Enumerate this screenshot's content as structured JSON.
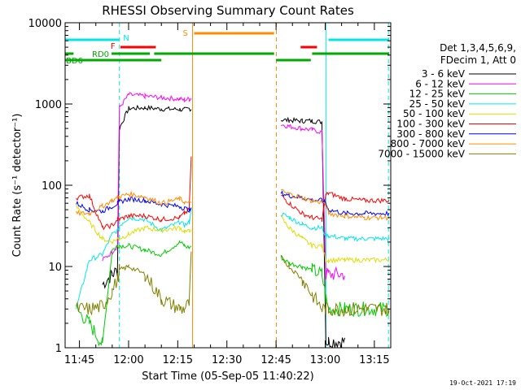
{
  "chart_data": {
    "type": "line",
    "title": "RHESSI Observing Summary Count Rates",
    "xlabel": "Start Time (05-Sep-05 11:40:22)",
    "ylabel": "Count Rate (s⁻¹ detector⁻¹)",
    "yscale": "log",
    "ylim": [
      1,
      10000
    ],
    "xlim_minutes": [
      0.63,
      100
    ],
    "x_ticks": [
      {
        "label": "11:45",
        "minutes": 5
      },
      {
        "label": "12:00",
        "minutes": 20
      },
      {
        "label": "12:15",
        "minutes": 35
      },
      {
        "label": "12:30",
        "minutes": 50
      },
      {
        "label": "12:45",
        "minutes": 65
      },
      {
        "label": "13:00",
        "minutes": 80
      },
      {
        "label": "13:15",
        "minutes": 95
      }
    ],
    "y_ticks": [
      {
        "label": "1",
        "value": 1
      },
      {
        "label": "10",
        "value": 10
      },
      {
        "label": "100",
        "value": 100
      },
      {
        "label": "1000",
        "value": 1000
      },
      {
        "label": "10000",
        "value": 10000
      }
    ],
    "legend_header": [
      "Det 1,3,4,5,6,9,",
      "FDecim 1, Att 0"
    ],
    "timestamp": "19-Oct-2021 17:19",
    "x": [
      0.6,
      4,
      8,
      12,
      15,
      16.6,
      17.2,
      20,
      25,
      30,
      35.6,
      37,
      38.5,
      39.1,
      39.5,
      42.8,
      51,
      59,
      64.4,
      66.5,
      69,
      73,
      76,
      79,
      80.2,
      81,
      86,
      92,
      99.5
    ],
    "series": [
      {
        "name": "3 - 6 keV",
        "color": "#000000",
        "values": [
          null,
          null,
          null,
          6,
          8,
          9,
          500,
          880,
          900,
          870,
          860,
          850,
          870,
          880,
          null,
          null,
          null,
          null,
          null,
          640,
          630,
          620,
          620,
          600,
          1.2,
          1.2,
          1.2,
          null,
          null
        ]
      },
      {
        "name": "6 - 12 keV",
        "color": "#ff00ff",
        "values": [
          null,
          null,
          null,
          12,
          15,
          18,
          900,
          1300,
          1250,
          1200,
          1150,
          1120,
          1150,
          1180,
          null,
          null,
          null,
          null,
          null,
          560,
          530,
          500,
          480,
          450,
          8,
          8,
          8,
          null,
          null
        ]
      },
      {
        "name": "12 - 25 keV",
        "color": "#00cc00",
        "values": [
          null,
          3,
          2,
          1.1,
          16,
          18,
          18,
          18,
          16,
          14,
          20,
          18,
          17,
          18,
          null,
          null,
          null,
          null,
          null,
          13,
          11,
          10,
          9,
          8,
          4,
          3,
          3,
          3,
          3
        ]
      },
      {
        "name": "25 - 50 keV",
        "color": "#00e6e6",
        "values": [
          null,
          3,
          12,
          14,
          25,
          28,
          32,
          40,
          38,
          28,
          35,
          32,
          35,
          50,
          null,
          null,
          null,
          null,
          null,
          45,
          40,
          33,
          30,
          30,
          24,
          24,
          22,
          22,
          22
        ]
      },
      {
        "name": "50 - 100 keV",
        "color": "#dddd00",
        "values": [
          null,
          55,
          35,
          22,
          20,
          22,
          22,
          25,
          30,
          28,
          30,
          27,
          27,
          30,
          null,
          null,
          null,
          null,
          null,
          40,
          30,
          22,
          18,
          18,
          12,
          12,
          12,
          12,
          12
        ]
      },
      {
        "name": "100 - 300 keV",
        "color": "#ff0000",
        "values": [
          null,
          70,
          75,
          30,
          32,
          38,
          38,
          42,
          42,
          38,
          40,
          45,
          50,
          220,
          null,
          null,
          null,
          null,
          null,
          75,
          60,
          45,
          40,
          38,
          75,
          80,
          68,
          65,
          65
        ]
      },
      {
        "name": "300 - 800 keV",
        "color": "#0000ff",
        "values": [
          null,
          60,
          50,
          48,
          55,
          60,
          62,
          68,
          65,
          58,
          55,
          52,
          50,
          50,
          null,
          null,
          null,
          null,
          null,
          80,
          75,
          70,
          66,
          65,
          60,
          50,
          45,
          45,
          45
        ]
      },
      {
        "name": "800 - 7000 keV",
        "color": "#ff8c00",
        "values": [
          null,
          45,
          45,
          55,
          65,
          70,
          72,
          78,
          72,
          60,
          68,
          62,
          60,
          65,
          null,
          null,
          null,
          null,
          null,
          85,
          78,
          70,
          64,
          62,
          55,
          45,
          42,
          40,
          40
        ]
      },
      {
        "name": "7000 - 15000 keV",
        "color": "#808000",
        "values": [
          null,
          3,
          3,
          3.2,
          5,
          7,
          9,
          10,
          8,
          4,
          3,
          3,
          3.5,
          15,
          null,
          null,
          null,
          null,
          null,
          13,
          10,
          7,
          4.5,
          3,
          3,
          3,
          3,
          3,
          3
        ]
      }
    ],
    "flag_bars": [
      {
        "label": "N",
        "color": "#00e6e6",
        "segments": [
          [
            0.6,
            17.1
          ],
          [
            81,
            99.5
          ]
        ]
      },
      {
        "label": "F",
        "color": "#ff0000",
        "segments": [
          [
            17.5,
            28.3
          ],
          [
            72.5,
            77.5
          ]
        ]
      },
      {
        "label": "S",
        "color": "#ff8c00",
        "segments": [
          [
            40,
            64.4
          ]
        ]
      },
      {
        "label": "RD0",
        "color": "#00aa00",
        "segments": [
          [
            0.6,
            3.2
          ],
          [
            14.8,
            26.5
          ],
          [
            27.8,
            64.4
          ],
          [
            76,
            99.5
          ]
        ]
      },
      {
        "label": "BD6",
        "color": "#00aa00",
        "segments": [
          [
            0.6,
            30
          ],
          [
            65,
            75.6
          ]
        ]
      }
    ],
    "markers": [
      {
        "minutes": 17.2,
        "color": "#00e6e6",
        "style": "dashed"
      },
      {
        "minutes": 39.5,
        "color": "#ff8c00",
        "style": "solid"
      },
      {
        "minutes": 65.1,
        "color": "#ff8c00",
        "style": "dashed"
      },
      {
        "minutes": 80.2,
        "color": "#00e6e6",
        "style": "solid"
      },
      {
        "minutes": 99.3,
        "color": "#00e6e6",
        "style": "dashed"
      }
    ]
  }
}
